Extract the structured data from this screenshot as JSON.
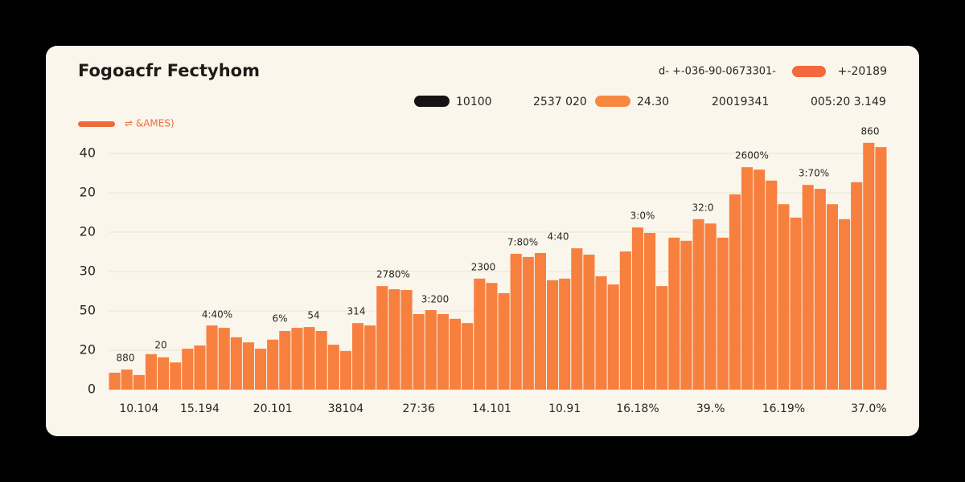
{
  "chart_data": {
    "type": "bar",
    "title": "Fogoacfr Fectyhom",
    "header_text": "d- +-036-90-0673301-",
    "header_value": "+-20189",
    "header_color": "#f4683d",
    "legend_items": [
      {
        "label": "10100",
        "color": "#161412"
      },
      {
        "label": "2537 020"
      },
      {
        "label": "24.30",
        "color": "#f7883f"
      },
      {
        "label": "20019341"
      },
      {
        "label": "005:20 3.149"
      }
    ],
    "series_label": "⇌ &AMES)",
    "series_label_color": "#f06a3c",
    "color": "#f7803f",
    "categories": [
      null,
      null,
      "10.104",
      null,
      null,
      null,
      null,
      "15.194",
      null,
      null,
      null,
      null,
      null,
      "20.101",
      null,
      null,
      null,
      null,
      null,
      "38104",
      null,
      null,
      null,
      null,
      null,
      "27:36",
      null,
      null,
      null,
      null,
      null,
      "14.101",
      null,
      null,
      null,
      null,
      null,
      "10.91",
      null,
      null,
      null,
      null,
      null,
      "16.18%",
      null,
      null,
      null,
      null,
      null,
      "39.%",
      null,
      null,
      null,
      null,
      null,
      "16.19%",
      null,
      null,
      null,
      null,
      null,
      null,
      "37.0%",
      null
    ],
    "values": [
      4.3,
      5.1,
      3.7,
      9,
      8.2,
      6.9,
      10.4,
      11.2,
      16.3,
      15.7,
      13.3,
      12,
      10.4,
      12.7,
      14.9,
      15.7,
      15.9,
      14.9,
      11.4,
      9.8,
      16.9,
      16.3,
      26.3,
      25.5,
      25.3,
      19.2,
      20.2,
      19.2,
      18,
      16.9,
      28.2,
      27.1,
      24.5,
      34.5,
      33.7,
      34.7,
      27.8,
      28.2,
      35.9,
      34.3,
      28.8,
      26.7,
      35.1,
      41.2,
      39.8,
      26.3,
      38.6,
      37.8,
      43.3,
      42.2,
      38.6,
      49.6,
      56.5,
      55.9,
      53.1,
      47.1,
      43.7,
      52,
      51,
      47.1,
      43.3,
      52.7,
      62.7,
      61.6
    ],
    "annotations": [
      "880",
      "20",
      "4:40%",
      "6%",
      "54",
      "314",
      "2780%",
      "3:200",
      "2300",
      "7:80%",
      "4:40",
      "3:0%",
      "32:0",
      "2600%",
      "3:70%",
      "860"
    ],
    "ylim": [
      0,
      65
    ],
    "yticks": [
      0,
      {
        "value": 10,
        "label": "20"
      },
      {
        "value": 20,
        "label": "50"
      },
      {
        "value": 30,
        "label": "30"
      },
      {
        "value": 40,
        "label": "20"
      },
      {
        "value": 50,
        "label": "20"
      },
      {
        "value": 60,
        "label": "40"
      }
    ],
    "grid": true
  }
}
